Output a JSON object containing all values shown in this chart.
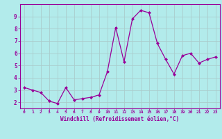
{
  "x": [
    0,
    1,
    2,
    3,
    4,
    5,
    6,
    7,
    8,
    9,
    10,
    11,
    12,
    13,
    14,
    15,
    16,
    17,
    18,
    19,
    20,
    21,
    22,
    23
  ],
  "y": [
    3.2,
    3.0,
    2.8,
    2.1,
    1.9,
    3.2,
    2.2,
    2.3,
    2.4,
    2.6,
    4.5,
    8.1,
    5.3,
    8.8,
    9.5,
    9.3,
    6.8,
    5.5,
    4.3,
    5.8,
    6.0,
    5.2,
    5.5,
    5.7
  ],
  "line_color": "#990099",
  "marker": "D",
  "marker_size": 2.0,
  "bg_color": "#b2ebeb",
  "grid_color": "#aacccc",
  "xlabel": "Windchill (Refroidissement éolien,°C)",
  "xlabel_color": "#990099",
  "tick_color": "#990099",
  "ylabel_ticks": [
    2,
    3,
    4,
    5,
    6,
    7,
    8,
    9
  ],
  "xlim": [
    -0.5,
    23.5
  ],
  "ylim": [
    1.5,
    10.0
  ]
}
